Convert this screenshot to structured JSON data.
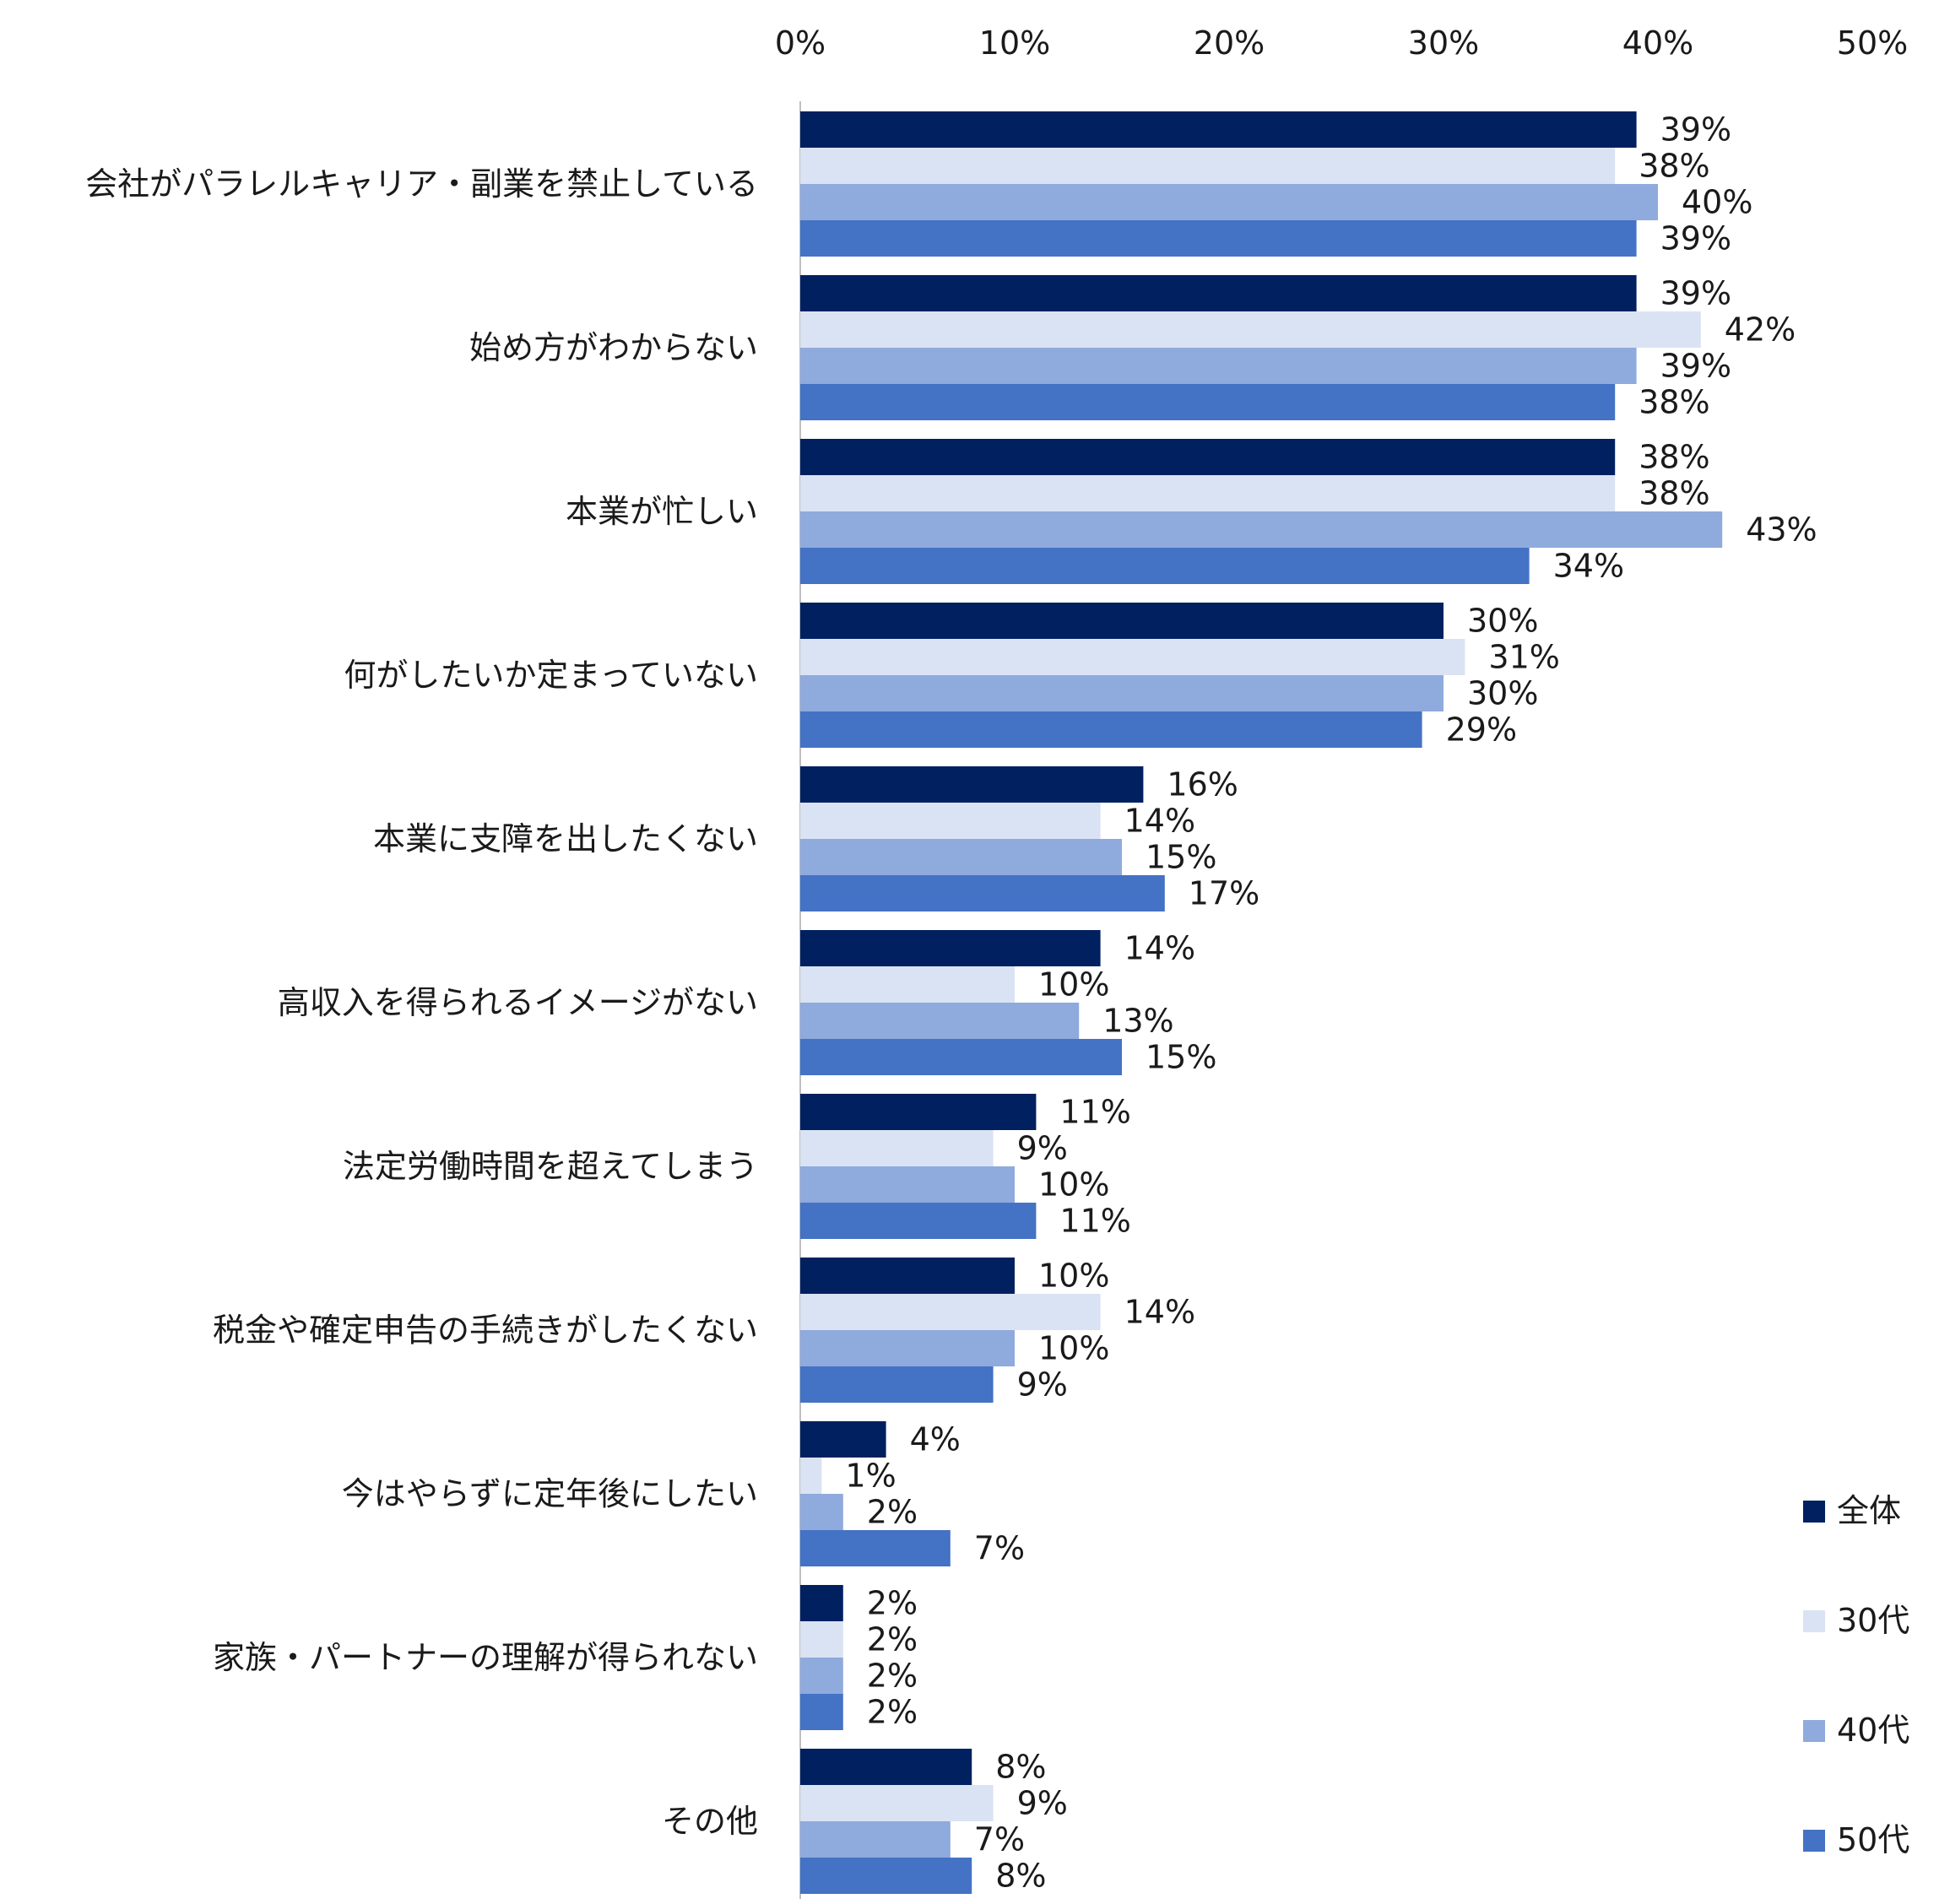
{
  "chart_data": {
    "type": "bar",
    "orientation": "horizontal",
    "title": "",
    "xlabel": "",
    "ylabel": "",
    "xlim": [
      0,
      50
    ],
    "x_ticks": [
      "0%",
      "10%",
      "20%",
      "30%",
      "40%",
      "50%"
    ],
    "grid": false,
    "legend_position": "bottom-right",
    "categories": [
      "会社がパラレルキャリア・副業を禁止している",
      "始め方がわからない",
      "本業が忙しい",
      "何がしたいか定まっていない",
      "本業に支障を出したくない",
      "高収入を得られるイメージがない",
      "法定労働時間を超えてしまう",
      "税金や確定申告の手続きがしたくない",
      "今はやらずに定年後にしたい",
      "家族・パートナーの理解が得られない",
      "その他"
    ],
    "series": [
      {
        "name": "全体",
        "color": "#002060",
        "values": [
          39,
          39,
          38,
          30,
          16,
          14,
          11,
          10,
          4,
          2,
          8
        ]
      },
      {
        "name": "30代",
        "color": "#DAE3F3",
        "values": [
          38,
          42,
          38,
          31,
          14,
          10,
          9,
          14,
          1,
          2,
          9
        ]
      },
      {
        "name": "40代",
        "color": "#8FAADC",
        "values": [
          40,
          39,
          43,
          30,
          15,
          13,
          10,
          10,
          2,
          2,
          7
        ]
      },
      {
        "name": "50代",
        "color": "#4472C4",
        "values": [
          39,
          38,
          34,
          29,
          17,
          15,
          11,
          9,
          7,
          2,
          8
        ]
      }
    ],
    "value_suffix": "%"
  }
}
